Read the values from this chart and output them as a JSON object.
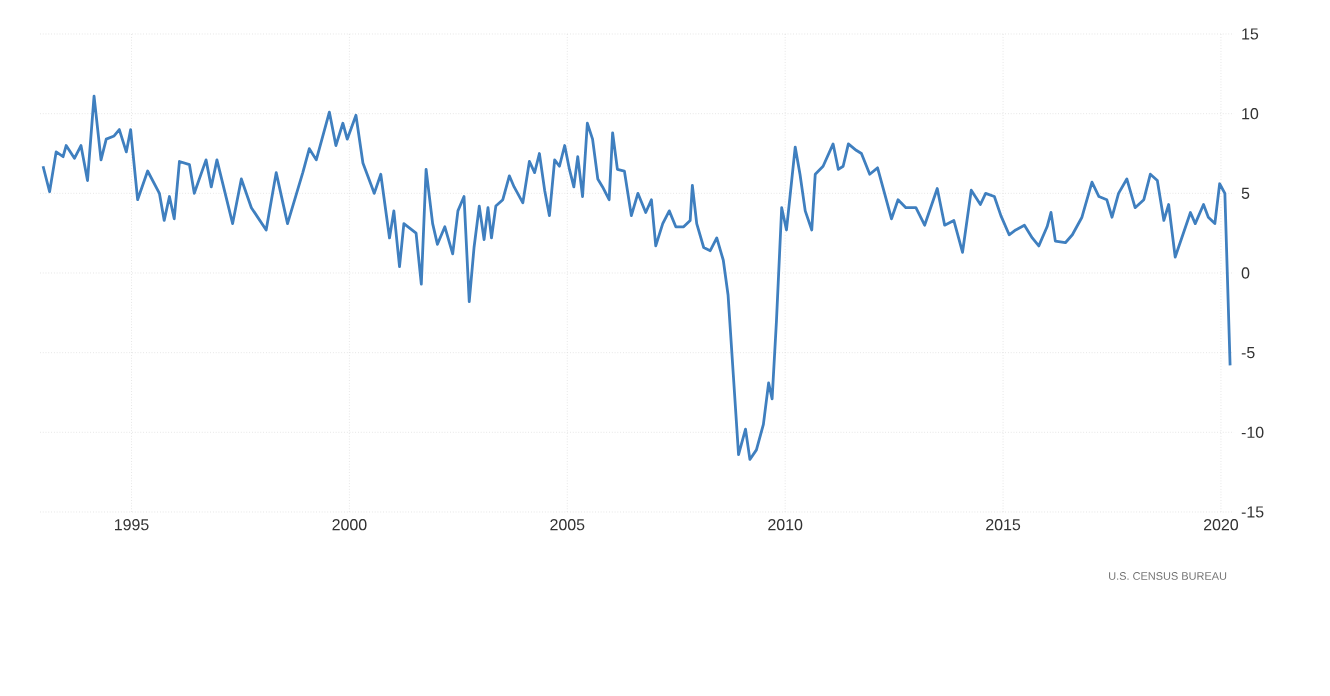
{
  "chart_data": {
    "type": "line",
    "x": [
      1992.97,
      1993.12,
      1993.27,
      1993.43,
      1993.5,
      1993.69,
      1993.84,
      1993.99,
      1994.14,
      1994.3,
      1994.42,
      1994.6,
      1994.72,
      1994.88,
      1994.98,
      1995.14,
      1995.37,
      1995.64,
      1995.75,
      1995.87,
      1995.98,
      1996.1,
      1996.33,
      1996.44,
      1996.71,
      1996.83,
      1996.96,
      1997.32,
      1997.52,
      1997.75,
      1998.09,
      1998.32,
      1998.58,
      1998.93,
      1999.08,
      1999.24,
      1999.54,
      1999.69,
      1999.85,
      1999.95,
      2000.15,
      2000.31,
      2000.57,
      2000.72,
      2000.92,
      2001.02,
      2001.15,
      2001.25,
      2001.53,
      2001.65,
      2001.76,
      2001.91,
      2002.02,
      2002.19,
      2002.37,
      2002.49,
      2002.63,
      2002.75,
      2002.86,
      2002.98,
      2003.09,
      2003.18,
      2003.26,
      2003.36,
      2003.52,
      2003.67,
      2003.78,
      2003.98,
      2004.13,
      2004.25,
      2004.36,
      2004.48,
      2004.59,
      2004.71,
      2004.82,
      2004.94,
      2005.05,
      2005.15,
      2005.24,
      2005.35,
      2005.46,
      2005.58,
      2005.7,
      2005.81,
      2005.96,
      2006.04,
      2006.15,
      2006.31,
      2006.47,
      2006.62,
      2006.8,
      2006.93,
      2007.03,
      2007.19,
      2007.34,
      2007.49,
      2007.67,
      2007.82,
      2007.87,
      2007.97,
      2008.13,
      2008.28,
      2008.43,
      2008.58,
      2008.69,
      2008.81,
      2008.93,
      2009.09,
      2009.19,
      2009.34,
      2009.5,
      2009.62,
      2009.7,
      2009.8,
      2009.92,
      2010.03,
      2010.23,
      2010.34,
      2010.46,
      2010.61,
      2010.69,
      2010.87,
      2011.1,
      2011.22,
      2011.33,
      2011.45,
      2011.63,
      2011.75,
      2011.94,
      2012.12,
      2012.29,
      2012.44,
      2012.59,
      2012.77,
      2013.0,
      2013.2,
      2013.49,
      2013.66,
      2013.87,
      2014.07,
      2014.27,
      2014.48,
      2014.6,
      2014.8,
      2014.95,
      2015.14,
      2015.29,
      2015.49,
      2015.67,
      2015.82,
      2016.01,
      2016.1,
      2016.2,
      2016.43,
      2016.59,
      2016.81,
      2017.04,
      2017.2,
      2017.38,
      2017.5,
      2017.65,
      2017.84,
      2018.03,
      2018.23,
      2018.38,
      2018.54,
      2018.69,
      2018.8,
      2018.95,
      2019.1,
      2019.3,
      2019.41,
      2019.6,
      2019.71,
      2019.86,
      2019.97,
      2020.09,
      2020.21
    ],
    "series": [
      {
        "color": "#3f7fbf",
        "values": [
          6.7,
          5.1,
          7.6,
          7.3,
          8.0,
          7.2,
          8.0,
          5.8,
          11.1,
          7.1,
          8.4,
          8.6,
          9.0,
          7.6,
          9.0,
          4.6,
          6.4,
          5.0,
          3.3,
          4.8,
          3.4,
          7.0,
          6.8,
          5.0,
          7.1,
          5.4,
          7.1,
          3.1,
          5.9,
          4.1,
          2.7,
          6.3,
          3.1,
          6.3,
          7.8,
          7.1,
          10.1,
          8.0,
          9.4,
          8.4,
          9.9,
          6.9,
          5.0,
          6.2,
          2.2,
          3.9,
          0.4,
          3.1,
          2.5,
          -0.7,
          6.5,
          3.1,
          1.8,
          2.9,
          1.2,
          3.9,
          4.8,
          -1.8,
          1.6,
          4.2,
          2.1,
          4.1,
          2.2,
          4.2,
          4.6,
          6.1,
          5.4,
          4.4,
          7.0,
          6.3,
          7.5,
          5.2,
          3.6,
          7.1,
          6.7,
          8.0,
          6.5,
          5.4,
          7.3,
          4.8,
          9.4,
          8.4,
          5.9,
          5.4,
          4.6,
          8.8,
          6.5,
          6.4,
          3.6,
          5.0,
          3.8,
          4.6,
          1.7,
          3.1,
          3.9,
          2.9,
          2.9,
          3.3,
          5.5,
          3.1,
          1.6,
          1.4,
          2.2,
          0.8,
          -1.4,
          -6.4,
          -11.4,
          -9.8,
          -11.7,
          -11.1,
          -9.5,
          -6.9,
          -7.9,
          -3.0,
          4.1,
          2.7,
          7.9,
          6.2,
          3.9,
          2.7,
          6.2,
          6.7,
          8.1,
          6.5,
          6.7,
          8.1,
          7.7,
          7.5,
          6.2,
          6.6,
          4.9,
          3.4,
          4.6,
          4.1,
          4.1,
          3.0,
          5.3,
          3.0,
          3.3,
          1.3,
          5.2,
          4.3,
          5.0,
          4.8,
          3.6,
          2.4,
          2.7,
          3.0,
          2.2,
          1.7,
          2.9,
          3.8,
          2.0,
          1.9,
          2.4,
          3.5,
          5.7,
          4.8,
          4.6,
          3.5,
          5.0,
          5.9,
          4.1,
          4.6,
          6.2,
          5.8,
          3.3,
          4.3,
          1.0,
          2.2,
          3.8,
          3.1,
          4.3,
          3.5,
          3.1,
          5.6,
          5.0,
          -5.8
        ]
      }
    ],
    "xlim": [
      1992.9,
      2020.3
    ],
    "ylim": [
      -15,
      15
    ],
    "xticks": [
      1995,
      2000,
      2005,
      2010,
      2015,
      2020
    ],
    "yticks": [
      -15,
      -10,
      -5,
      0,
      5,
      10,
      15
    ],
    "grid": true,
    "marker": "none",
    "line_style": "solid",
    "annotations": [
      "U.S. CENSUS BUREAU"
    ]
  }
}
